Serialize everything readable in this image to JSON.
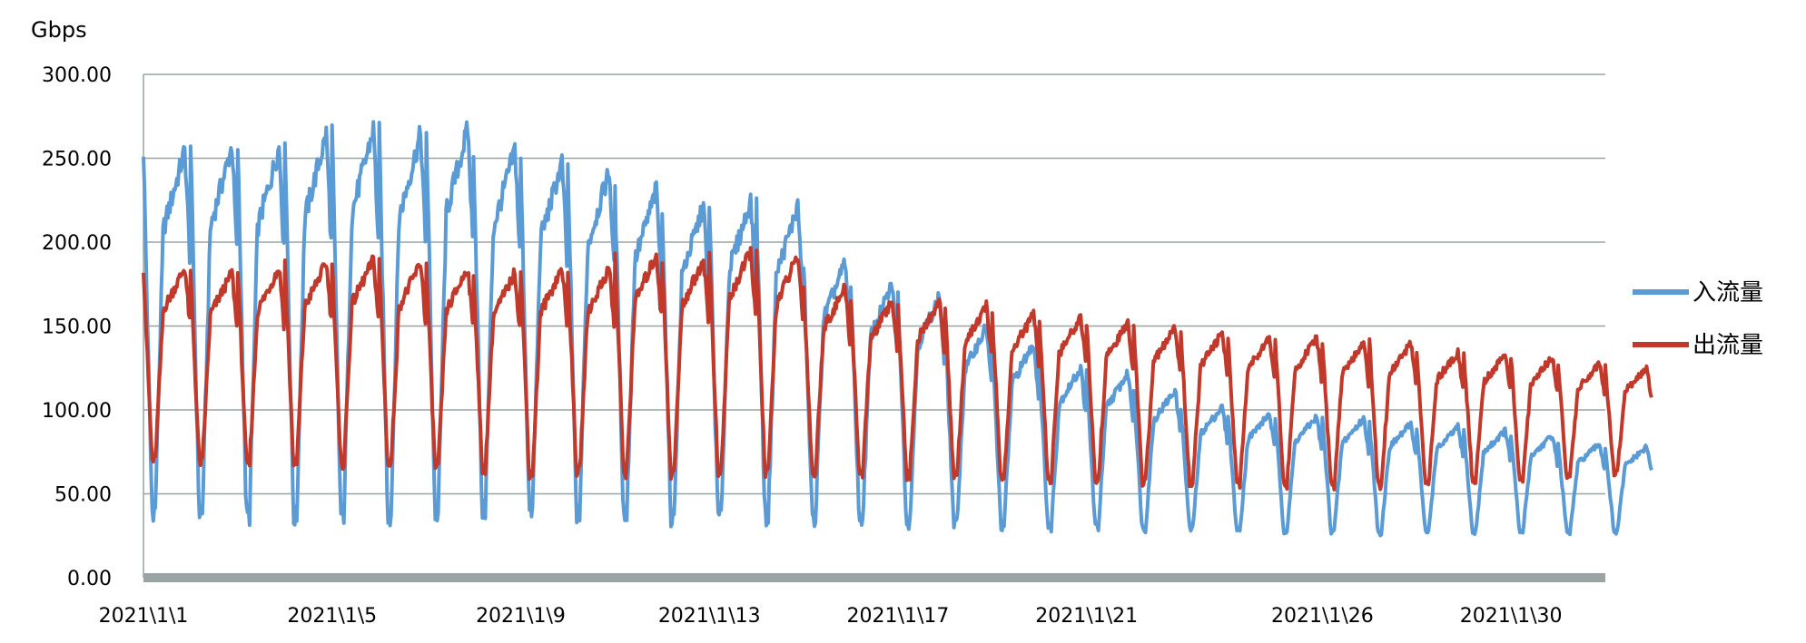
{
  "chart_data": {
    "type": "line",
    "y_unit": "Gbps",
    "ylim": [
      0,
      300
    ],
    "y_ticks": [
      "0.00",
      "50.00",
      "100.00",
      "150.00",
      "200.00",
      "250.00",
      "300.00"
    ],
    "x_tick_labels": [
      "2021\\1\\1",
      "2021\\1\\5",
      "2021\\1\\9",
      "2021\\1\\13",
      "2021\\1\\17",
      "2021\\1\\21",
      "2021\\1\\26",
      "2021\\1\\30"
    ],
    "x_tick_days": [
      1,
      5,
      9,
      13,
      17,
      21,
      26,
      30
    ],
    "x_range_days": [
      1,
      32
    ],
    "grid": "horizontal",
    "legend_position": "right",
    "colors": {
      "in": "#5b9bd5",
      "out": "#c0392b",
      "grid": "#9aa4a2",
      "axis": "#9aa4a2"
    },
    "series": [
      {
        "name": "入流量",
        "key": "in",
        "daily_peak": [
          255,
          258,
          257,
          265,
          268,
          265,
          268,
          256,
          248,
          243,
          232,
          222,
          225,
          222,
          188,
          175,
          168,
          150,
          140,
          125,
          122,
          112,
          102,
          98,
          96,
          95,
          92,
          90,
          88,
          85,
          80,
          78
        ],
        "daily_min": [
          40,
          38,
          37,
          36,
          38,
          37,
          38,
          40,
          40,
          38,
          37,
          36,
          37,
          36,
          35,
          34,
          33,
          32,
          31,
          30,
          30,
          29,
          29,
          28,
          28,
          28,
          27,
          27,
          27,
          27,
          27,
          27
        ]
      },
      {
        "name": "出流量",
        "key": "out",
        "daily_peak": [
          185,
          182,
          185,
          188,
          190,
          188,
          185,
          182,
          185,
          185,
          193,
          190,
          195,
          192,
          173,
          165,
          165,
          162,
          157,
          155,
          152,
          149,
          146,
          144,
          143,
          141,
          140,
          135,
          133,
          132,
          128,
          125
        ],
        "daily_min": [
          70,
          69,
          68,
          68,
          68,
          67,
          66,
          65,
          62,
          63,
          63,
          62,
          62,
          62,
          62,
          62,
          61,
          60,
          59,
          58,
          58,
          57,
          57,
          56,
          55,
          55,
          55,
          55,
          58,
          58,
          60,
          62
        ]
      }
    ]
  }
}
